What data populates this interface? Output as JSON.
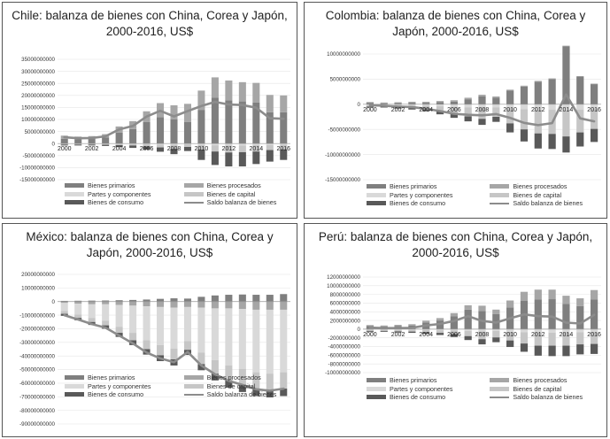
{
  "chart_data": [
    {
      "type": "bar",
      "title": "Chile: balanza de bienes con China, Corea y Japón,  2000-2016,  US$",
      "years": [
        2000,
        2001,
        2002,
        2003,
        2004,
        2005,
        2006,
        2007,
        2008,
        2009,
        2010,
        2011,
        2012,
        2013,
        2014,
        2015,
        2016
      ],
      "x_tick_labels": [
        "2000",
        "2002",
        "2004",
        "2006",
        "2008",
        "2010",
        "2012",
        "2014",
        "2016"
      ],
      "ylim": [
        -15000000000,
        35000000000
      ],
      "y_ticks": [
        "35000000000",
        "30000000000",
        "25000000000",
        "20000000000",
        "15000000000",
        "10000000000",
        "5000000000",
        "0",
        "-5000000000",
        "-10000000000",
        "-15000000000"
      ],
      "series": [
        {
          "name": "Bienes  primarios",
          "color": "#7f7f7f",
          "values": [
            2000000000,
            1800000000,
            1900000000,
            2500000000,
            4500000000,
            6000000000,
            9000000000,
            11000000000,
            10000000000,
            9000000000,
            14000000000,
            19000000000,
            18000000000,
            17500000000,
            17000000000,
            13000000000,
            13000000000
          ]
        },
        {
          "name": "Bienes procesados",
          "color": "#a6a6a6",
          "values": [
            1300000000,
            1100000000,
            1200000000,
            1400000000,
            2600000000,
            3300000000,
            4400000000,
            5800000000,
            5900000000,
            7500000000,
            8000000000,
            8500000000,
            8200000000,
            8000000000,
            8200000000,
            7200000000,
            7000000000
          ]
        },
        {
          "name": "Partes y componentes",
          "color": "#d9d9d9",
          "values": [
            -100000000,
            -100000000,
            -100000000,
            -150000000,
            -200000000,
            -250000000,
            -300000000,
            -400000000,
            -500000000,
            -300000000,
            -600000000,
            -700000000,
            -800000000,
            -800000000,
            -700000000,
            -600000000,
            -500000000
          ]
        },
        {
          "name": "Bienes de capital",
          "color": "#c6c6c6",
          "values": [
            -300000000,
            -300000000,
            -300000000,
            -350000000,
            -450000000,
            -550000000,
            -900000000,
            -1200000000,
            -1700000000,
            -1100000000,
            -1900000000,
            -2600000000,
            -2900000000,
            -2800000000,
            -2600000000,
            -2100000000,
            -1900000000
          ]
        },
        {
          "name": "Bienes de consumo",
          "color": "#595959",
          "values": [
            -400000000,
            -400000000,
            -400000000,
            -500000000,
            -800000000,
            -1000000000,
            -1300000000,
            -1800000000,
            -2200000000,
            -1700000000,
            -4300000000,
            -5600000000,
            -5800000000,
            -5900000000,
            -5200000000,
            -4800000000,
            -4400000000
          ]
        },
        {
          "name": "Saldo balanza de bienes",
          "color": "#8c8c8c",
          "type": "line",
          "values": [
            2600000000,
            2200000000,
            2300000000,
            3000000000,
            5900000000,
            7300000000,
            11200000000,
            13600000000,
            11300000000,
            13500000000,
            15600000000,
            17300000000,
            16200000000,
            16000000000,
            14900000000,
            10500000000,
            10300000000
          ]
        }
      ]
    },
    {
      "type": "bar",
      "title": "Colombia: balanza de bienes con China,  Corea y Japón,  2000-2016, US$",
      "years": [
        2000,
        2001,
        2002,
        2003,
        2004,
        2005,
        2006,
        2007,
        2008,
        2009,
        2010,
        2011,
        2012,
        2013,
        2014,
        2015,
        2016
      ],
      "x_tick_labels": [
        "2000",
        "2002",
        "2004",
        "2006",
        "2008",
        "2010",
        "2012",
        "2014",
        "2016"
      ],
      "ylim": [
        -15000000000,
        10000000000
      ],
      "y_ticks": [
        "10000000000",
        "5000000000",
        "0",
        "-5000000000",
        "-10000000000",
        "-15000000000"
      ],
      "series": [
        {
          "name": "Bienes  primarios",
          "color": "#7f7f7f",
          "values": [
            300000000,
            200000000,
            250000000,
            300000000,
            300000000,
            400000000,
            500000000,
            1000000000,
            1600000000,
            1300000000,
            2700000000,
            3500000000,
            4500000000,
            5000000000,
            11500000000,
            5500000000,
            4000000000
          ]
        },
        {
          "name": "Bienes procesados",
          "color": "#a6a6a6",
          "values": [
            150000000,
            150000000,
            150000000,
            200000000,
            200000000,
            250000000,
            300000000,
            300000000,
            300000000,
            250000000,
            200000000,
            200000000,
            150000000,
            150000000,
            150000000,
            100000000,
            100000000
          ]
        },
        {
          "name": "Partes y componentes",
          "color": "#d9d9d9",
          "values": [
            -150000000,
            -150000000,
            -200000000,
            -250000000,
            -300000000,
            -400000000,
            -500000000,
            -600000000,
            -700000000,
            -600000000,
            -800000000,
            -1000000000,
            -1100000000,
            -1100000000,
            -1200000000,
            -1100000000,
            -900000000
          ]
        },
        {
          "name": "Bienes de capital",
          "color": "#c6c6c6",
          "values": [
            -300000000,
            -300000000,
            -400000000,
            -500000000,
            -700000000,
            -1000000000,
            -1400000000,
            -1800000000,
            -2200000000,
            -1900000000,
            -3000000000,
            -4000000000,
            -4700000000,
            -4800000000,
            -5200000000,
            -4500000000,
            -4000000000
          ]
        },
        {
          "name": "Bienes de consumo",
          "color": "#595959",
          "values": [
            -200000000,
            -200000000,
            -250000000,
            -300000000,
            -400000000,
            -600000000,
            -800000000,
            -1000000000,
            -1200000000,
            -1000000000,
            -1800000000,
            -2400000000,
            -3000000000,
            -3000000000,
            -3200000000,
            -2800000000,
            -2600000000
          ]
        },
        {
          "name": "Saldo balanza de bienes",
          "color": "#8c8c8c",
          "type": "line",
          "values": [
            -200000000,
            -300000000,
            -450000000,
            -550000000,
            -900000000,
            -1350000000,
            -1900000000,
            -2100000000,
            -2200000000,
            -1950000000,
            -2700000000,
            -3700000000,
            -4150000000,
            -3750000000,
            1950000000,
            -2800000000,
            -3400000000
          ]
        }
      ]
    },
    {
      "type": "bar",
      "title": "México: balanza de bienes con China,  Corea y Japón,  2000-2016, US$",
      "years": [
        2000,
        2001,
        2002,
        2003,
        2004,
        2005,
        2006,
        2007,
        2008,
        2009,
        2010,
        2011,
        2012,
        2013,
        2014,
        2015,
        2016
      ],
      "x_tick_labels": [],
      "ylim": [
        -90000000000,
        20000000000
      ],
      "y_ticks": [
        "20000000000",
        "10000000000",
        "0",
        "-10000000000",
        "-20000000000",
        "-30000000000",
        "-40000000000",
        "-50000000000",
        "-60000000000",
        "-70000000000",
        "-80000000000",
        "-90000000000"
      ],
      "series": [
        {
          "name": "Bienes  primarios",
          "color": "#7f7f7f",
          "values": [
            500000000,
            600000000,
            700000000,
            800000000,
            1000000000,
            1200000000,
            1500000000,
            2000000000,
            2400000000,
            2200000000,
            3500000000,
            4500000000,
            5000000000,
            5200000000,
            5000000000,
            5000000000,
            5500000000
          ]
        },
        {
          "name": "Bienes procesados",
          "color": "#a6a6a6",
          "values": [
            -1000000000,
            -1500000000,
            -2000000000,
            -2000000000,
            -2500000000,
            -3000000000,
            -3500000000,
            -4000000000,
            -4500000000,
            -4000000000,
            -4500000000,
            -5000000000,
            -5000000000,
            -5500000000,
            -6000000000,
            -6000000000,
            -6000000000
          ]
        },
        {
          "name": "Partes y componentes",
          "color": "#d9d9d9",
          "values": [
            -6000000000,
            -8000000000,
            -10000000000,
            -12000000000,
            -16000000000,
            -20000000000,
            -25000000000,
            -28000000000,
            -30000000000,
            -25000000000,
            -33000000000,
            -38000000000,
            -42000000000,
            -44000000000,
            -46000000000,
            -47000000000,
            -46000000000
          ]
        },
        {
          "name": "Bienes de capital",
          "color": "#c6c6c6",
          "values": [
            -2000000000,
            -2500000000,
            -3000000000,
            -3500000000,
            -4500000000,
            -5500000000,
            -6500000000,
            -7500000000,
            -8000000000,
            -6500000000,
            -8500000000,
            -10000000000,
            -11000000000,
            -11500000000,
            -12000000000,
            -12000000000,
            -12000000000
          ]
        },
        {
          "name": "Bienes de consumo",
          "color": "#595959",
          "values": [
            -1500000000,
            -1800000000,
            -2200000000,
            -2500000000,
            -3000000000,
            -3500000000,
            -4000000000,
            -4300000000,
            -4500000000,
            -3800000000,
            -4500000000,
            -5000000000,
            -5300000000,
            -5500000000,
            -5500000000,
            -5500000000,
            -5500000000
          ]
        },
        {
          "name": "Saldo balanza de bienes",
          "color": "#8c8c8c",
          "type": "line",
          "values": [
            -10000000000,
            -13200000000,
            -16500000000,
            -19200000000,
            -25000000000,
            -30800000000,
            -37500000000,
            -41800000000,
            -44600000000,
            -37100000000,
            -47000000000,
            -53500000000,
            -58300000000,
            -61300000000,
            -64500000000,
            -65500000000,
            -64000000000
          ]
        }
      ]
    },
    {
      "type": "bar",
      "title": "Perú: balanza de bienes con China, Corea y Japón,  2000-2016, US$",
      "years": [
        2000,
        2001,
        2002,
        2003,
        2004,
        2005,
        2006,
        2007,
        2008,
        2009,
        2010,
        2011,
        2012,
        2013,
        2014,
        2015,
        2016
      ],
      "x_tick_labels": [
        "2000",
        "2002",
        "2004",
        "2006",
        "2008",
        "2010",
        "2012",
        "2014",
        "2016"
      ],
      "ylim": [
        -10000000000,
        12000000000
      ],
      "y_ticks": [
        "12000000000",
        "10000000000",
        "8000000000",
        "6000000000",
        "4000000000",
        "2000000000",
        "0",
        "-2000000000",
        "-4000000000",
        "-6000000000",
        "-8000000000",
        "-10000000000"
      ],
      "series": [
        {
          "name": "Bienes  primarios",
          "color": "#7f7f7f",
          "values": [
            700000000,
            600000000,
            700000000,
            800000000,
            1500000000,
            2000000000,
            3000000000,
            4500000000,
            4200000000,
            3500000000,
            5000000000,
            6500000000,
            6800000000,
            6900000000,
            5800000000,
            5300000000,
            6800000000
          ]
        },
        {
          "name": "Bienes procesados",
          "color": "#a6a6a6",
          "values": [
            250000000,
            250000000,
            300000000,
            350000000,
            450000000,
            550000000,
            700000000,
            1000000000,
            1200000000,
            1000000000,
            1600000000,
            2100000000,
            2300000000,
            2200000000,
            1900000000,
            1800000000,
            2200000000
          ]
        },
        {
          "name": "Partes y componentes",
          "color": "#d9d9d9",
          "values": [
            -100000000,
            -100000000,
            -150000000,
            -150000000,
            -200000000,
            -250000000,
            -300000000,
            -400000000,
            -500000000,
            -400000000,
            -600000000,
            -700000000,
            -800000000,
            -800000000,
            -800000000,
            -700000000,
            -700000000
          ]
        },
        {
          "name": "Bienes de capital",
          "color": "#c6c6c6",
          "values": [
            -300000000,
            -300000000,
            -350000000,
            -400000000,
            -500000000,
            -600000000,
            -800000000,
            -1200000000,
            -1800000000,
            -1500000000,
            -2000000000,
            -2600000000,
            -3000000000,
            -3000000000,
            -3000000000,
            -2800000000,
            -2700000000
          ]
        },
        {
          "name": "Bienes de consumo",
          "color": "#595959",
          "values": [
            -200000000,
            -200000000,
            -250000000,
            -300000000,
            -400000000,
            -500000000,
            -700000000,
            -900000000,
            -1200000000,
            -1100000000,
            -1500000000,
            -1900000000,
            -2300000000,
            -2400000000,
            -2400000000,
            -2300000000,
            -2300000000
          ]
        },
        {
          "name": "Saldo balanza de bienes",
          "color": "#8c8c8c",
          "type": "line",
          "values": [
            350000000,
            250000000,
            250000000,
            300000000,
            850000000,
            1200000000,
            1900000000,
            3000000000,
            1900000000,
            1500000000,
            2500000000,
            3400000000,
            3000000000,
            2900000000,
            1500000000,
            1300000000,
            3300000000
          ]
        }
      ]
    }
  ]
}
